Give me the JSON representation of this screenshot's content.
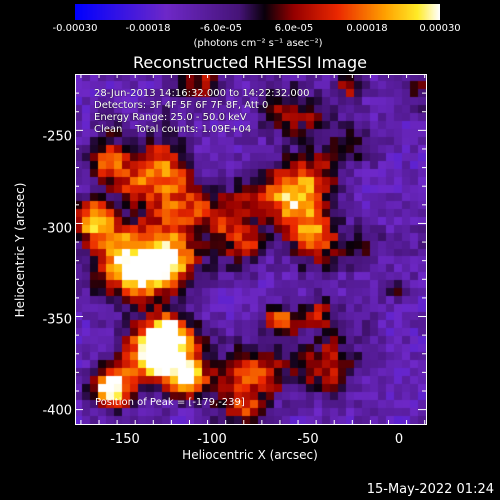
{
  "colorbar": {
    "ticks": [
      "-0.00030",
      "-0.00018",
      "-6.0e-05",
      "6.0e-05",
      "0.00018",
      "0.00030"
    ],
    "unit": "(photons cm⁻² s⁻¹ asec⁻²)"
  },
  "title": "Reconstructed RHESSI Image",
  "info": {
    "line1": "28-Jun-2013 14:16:32.000 to 14:22:32.000",
    "line2": "Detectors: 3F 4F 5F 6F 7F 8F, Att 0",
    "line3": "Energy Range: 25.0 - 50.0 keV",
    "line4": "Clean    Total counts: 1.09E+04"
  },
  "peak": "Position of Peak = [-179,-239]",
  "axes": {
    "xlabel": "Heliocentric X (arcsec)",
    "ylabel": "Heliocentric Y (arcsec)",
    "xticks": [
      "-150",
      "-100",
      "-50",
      "0"
    ],
    "yticks": [
      "-250",
      "-300",
      "-350",
      "-400"
    ],
    "xlim": [
      -178,
      16
    ],
    "ylim": [
      -408,
      -220
    ]
  },
  "footer": "15-May-2022 01:24",
  "colors": {
    "background": "#000000",
    "text": "#ffffff"
  }
}
